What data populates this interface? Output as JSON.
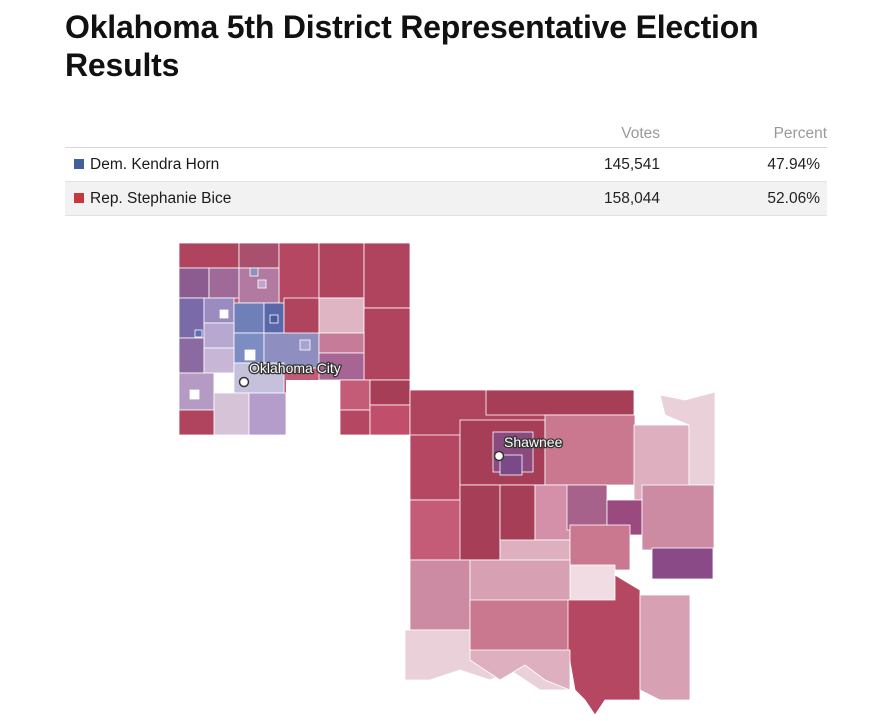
{
  "title": "Oklahoma 5th District Representative Election Results",
  "table": {
    "headers": {
      "candidate": "",
      "votes": "Votes",
      "percent": "Percent"
    },
    "rows": [
      {
        "name": "Dem. Kendra Horn",
        "votes": "145,541",
        "percent": "47.94%",
        "color": "#3f5f9e"
      },
      {
        "name": "Rep. Stephanie Bice",
        "votes": "158,044",
        "percent": "52.06%",
        "color": "#c7383d"
      }
    ]
  },
  "map": {
    "cities": [
      {
        "name": "Oklahoma City"
      },
      {
        "name": "Shawnee"
      }
    ],
    "colors": {
      "strong_rep": "#b0445f",
      "lean_rep": "#c9788f",
      "light_rep": "#deb0bf",
      "swing": "#9e6f9b",
      "dem": "#6f7fb8"
    }
  }
}
